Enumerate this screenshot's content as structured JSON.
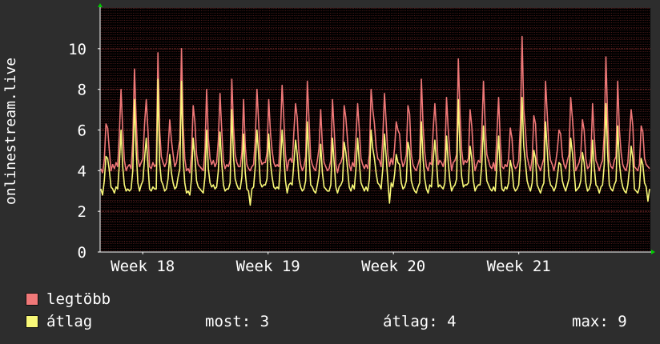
{
  "chart_data": {
    "type": "line",
    "ylabel": "onlinestream.live",
    "ylim": [
      0,
      12
    ],
    "yticks": [
      0,
      2,
      4,
      6,
      8,
      10
    ],
    "xticks": [
      "Week 18",
      "Week 19",
      "Week 20",
      "Week 21"
    ],
    "xtick_positions": [
      17.6,
      27.6,
      37.6,
      47.6
    ],
    "x_range": [
      14.2,
      58.1
    ],
    "grid": true,
    "series": [
      {
        "name": "legtöbb",
        "color": "#f07878",
        "values": [
          4.1,
          3.9,
          4.5,
          6.3,
          6.1,
          5.0,
          4.0,
          4.3,
          4.1,
          4.4,
          4.2,
          5.8,
          8.0,
          6.0,
          4.5,
          4.0,
          4.2,
          4.3,
          4.1,
          5.5,
          9.0,
          6.5,
          4.6,
          4.2,
          4.4,
          4.6,
          6.3,
          7.5,
          6.0,
          4.2,
          4.1,
          4.4,
          4.2,
          4.3,
          9.8,
          6.0,
          4.7,
          4.4,
          4.2,
          4.4,
          5.0,
          6.5,
          5.5,
          4.8,
          4.2,
          4.4,
          5.0,
          5.5,
          10.0,
          6.3,
          4.6,
          4.0,
          4.1,
          3.9,
          4.8,
          7.2,
          6.4,
          4.8,
          4.3,
          4.2,
          4.1,
          4.0,
          5.0,
          8.0,
          5.6,
          4.6,
          4.3,
          4.5,
          4.2,
          4.4,
          5.5,
          7.8,
          6.0,
          4.5,
          4.1,
          4.3,
          4.2,
          4.5,
          8.5,
          6.2,
          4.8,
          4.4,
          4.2,
          4.2,
          4.9,
          7.5,
          5.2,
          4.3,
          4.1,
          4.0,
          4.2,
          4.3,
          5.5,
          8.0,
          6.4,
          4.6,
          4.3,
          4.4,
          4.4,
          4.9,
          7.5,
          5.9,
          5.0,
          4.4,
          4.2,
          4.3,
          4.2,
          5.8,
          8.2,
          6.6,
          4.8,
          4.0,
          4.5,
          4.6,
          4.4,
          5.9,
          7.3,
          6.6,
          4.9,
          4.3,
          4.0,
          4.2,
          4.7,
          8.4,
          6.5,
          4.6,
          4.3,
          4.1,
          4.0,
          4.5,
          5.1,
          7.0,
          5.2,
          4.4,
          4.2,
          4.0,
          4.1,
          4.5,
          7.5,
          6.0,
          4.3,
          3.9,
          4.3,
          4.4,
          4.7,
          7.2,
          6.6,
          5.5,
          4.3,
          4.0,
          4.4,
          4.2,
          5.6,
          7.3,
          6.0,
          4.6,
          4.3,
          4.1,
          4.3,
          4.1,
          4.8,
          8.0,
          7.0,
          6.3,
          5.2,
          4.6,
          4.5,
          4.2,
          5.6,
          7.8,
          6.4,
          4.8,
          4.2,
          4.6,
          4.3,
          5.1,
          6.4,
          6.0,
          5.8,
          4.6,
          4.2,
          4.4,
          4.8,
          7.2,
          6.8,
          4.8,
          4.3,
          4.1,
          4.0,
          4.3,
          4.6,
          8.5,
          6.2,
          4.9,
          4.2,
          4.0,
          4.4,
          4.3,
          6.0,
          7.3,
          6.0,
          4.3,
          4.5,
          4.4,
          4.2,
          4.6,
          7.6,
          6.0,
          4.8,
          4.0,
          4.4,
          4.5,
          4.8,
          9.5,
          6.8,
          5.0,
          4.3,
          4.5,
          4.4,
          4.6,
          7.0,
          6.2,
          4.8,
          4.0,
          4.3,
          4.5,
          4.4,
          5.8,
          8.4,
          6.3,
          4.8,
          4.5,
          4.2,
          4.1,
          4.4,
          4.0,
          5.8,
          7.6,
          5.4,
          4.2,
          4.1,
          4.3,
          4.2,
          4.6,
          6.1,
          5.6,
          4.3,
          4.1,
          4.2,
          4.5,
          6.3,
          10.6,
          7.0,
          6.0,
          4.7,
          4.3,
          4.0,
          4.6,
          6.7,
          6.3,
          4.4,
          4.2,
          4.0,
          4.3,
          4.6,
          8.4,
          6.8,
          5.1,
          4.5,
          4.3,
          4.0,
          4.4,
          5.0,
          6.0,
          5.8,
          4.7,
          4.3,
          4.1,
          4.5,
          4.8,
          7.6,
          6.6,
          5.4,
          4.0,
          4.2,
          4.4,
          4.8,
          6.5,
          6.0,
          4.6,
          4.1,
          4.2,
          4.6,
          7.3,
          5.7,
          4.5,
          4.3,
          4.0,
          4.3,
          4.5,
          5.8,
          9.6,
          6.6,
          4.5,
          4.2,
          4.1,
          4.5,
          4.7,
          8.4,
          6.0,
          4.9,
          4.3,
          4.1,
          4.0,
          4.4,
          5.6,
          7.0,
          6.2,
          4.2,
          4.1,
          4.0,
          4.3,
          6.2,
          5.9,
          4.6,
          4.3,
          4.2,
          4.1
        ]
      },
      {
        "name": "átlag",
        "color": "#f8f878",
        "values": [
          3.1,
          2.8,
          3.5,
          4.7,
          4.6,
          4.0,
          3.2,
          3.1,
          2.9,
          3.2,
          3.1,
          4.3,
          6.0,
          4.2,
          3.3,
          3.0,
          3.1,
          3.0,
          3.1,
          4.0,
          7.5,
          5.0,
          3.4,
          3.0,
          3.3,
          3.5,
          4.6,
          5.6,
          4.3,
          3.1,
          3.0,
          3.2,
          3.1,
          3.1,
          8.5,
          4.4,
          3.5,
          3.3,
          3.0,
          3.1,
          3.6,
          4.8,
          3.9,
          3.4,
          3.1,
          3.2,
          3.7,
          4.1,
          8.4,
          4.6,
          3.4,
          2.9,
          3.0,
          2.8,
          3.6,
          5.6,
          4.7,
          3.5,
          3.2,
          3.1,
          3.0,
          2.9,
          3.7,
          6.0,
          4.1,
          3.4,
          3.2,
          3.3,
          3.1,
          3.2,
          4.0,
          5.9,
          4.4,
          3.3,
          3.0,
          3.1,
          3.1,
          3.4,
          7.0,
          4.7,
          3.6,
          3.3,
          3.1,
          3.1,
          3.7,
          5.8,
          3.9,
          3.1,
          3.0,
          2.3,
          3.1,
          3.2,
          4.2,
          6.0,
          4.8,
          3.4,
          3.2,
          3.3,
          3.3,
          3.6,
          5.8,
          4.4,
          3.7,
          3.2,
          3.1,
          3.2,
          3.1,
          4.3,
          6.0,
          4.8,
          3.5,
          2.9,
          3.3,
          3.4,
          3.3,
          4.4,
          5.5,
          4.8,
          3.6,
          3.2,
          3.0,
          3.1,
          3.5,
          6.4,
          4.8,
          3.3,
          3.2,
          3.0,
          2.9,
          3.3,
          3.8,
          5.3,
          3.9,
          3.2,
          3.1,
          3.0,
          3.0,
          3.3,
          5.6,
          4.4,
          3.2,
          2.9,
          3.2,
          3.3,
          3.5,
          5.4,
          4.9,
          4.1,
          3.2,
          3.0,
          3.3,
          3.1,
          4.1,
          5.6,
          4.4,
          3.4,
          3.2,
          3.0,
          3.2,
          3.0,
          3.6,
          6.0,
          5.1,
          4.6,
          3.9,
          3.4,
          3.3,
          3.1,
          4.1,
          5.8,
          4.7,
          3.5,
          2.4,
          3.4,
          3.2,
          3.8,
          4.8,
          4.4,
          4.3,
          3.4,
          3.1,
          3.2,
          3.5,
          5.4,
          5.0,
          3.5,
          3.2,
          3.0,
          2.9,
          3.2,
          3.4,
          6.4,
          4.6,
          3.6,
          3.1,
          2.9,
          3.3,
          3.2,
          4.5,
          5.5,
          4.4,
          3.2,
          3.3,
          3.2,
          3.1,
          3.4,
          5.7,
          4.4,
          3.5,
          3.0,
          3.2,
          3.3,
          3.6,
          7.5,
          5.0,
          3.7,
          3.2,
          3.3,
          3.3,
          3.4,
          5.2,
          4.6,
          3.5,
          3.0,
          3.2,
          3.3,
          3.3,
          4.3,
          6.2,
          4.7,
          3.5,
          3.3,
          3.1,
          3.0,
          3.2,
          3.0,
          4.3,
          5.7,
          4.0,
          3.1,
          3.0,
          3.2,
          3.1,
          3.4,
          4.5,
          4.1,
          3.2,
          3.0,
          3.1,
          3.3,
          4.6,
          7.6,
          5.2,
          4.4,
          3.5,
          3.2,
          3.0,
          3.4,
          5.0,
          4.6,
          3.3,
          3.1,
          2.9,
          3.2,
          3.4,
          6.4,
          5.0,
          3.7,
          3.3,
          3.2,
          3.0,
          3.2,
          3.7,
          4.4,
          4.3,
          3.5,
          3.2,
          3.0,
          3.3,
          3.6,
          5.6,
          4.9,
          4.0,
          3.0,
          3.1,
          3.2,
          3.5,
          4.9,
          4.4,
          3.4,
          3.0,
          3.1,
          3.4,
          5.5,
          4.2,
          3.3,
          3.2,
          2.9,
          3.2,
          3.3,
          4.3,
          7.3,
          4.9,
          3.3,
          3.1,
          3.0,
          3.3,
          3.5,
          6.2,
          4.4,
          3.6,
          3.2,
          3.0,
          2.9,
          3.3,
          4.1,
          5.2,
          4.6,
          3.1,
          3.0,
          2.9,
          3.2,
          4.6,
          4.3,
          3.4,
          3.2,
          2.5,
          3.1
        ]
      }
    ]
  },
  "legend": {
    "items": [
      {
        "label": "legtöbb",
        "color": "#f07878"
      },
      {
        "label": "átlag",
        "color": "#f8f878"
      }
    ],
    "stats": {
      "most": "most: 3",
      "atlag": "átlag: 4",
      "max": "max: 9"
    }
  }
}
